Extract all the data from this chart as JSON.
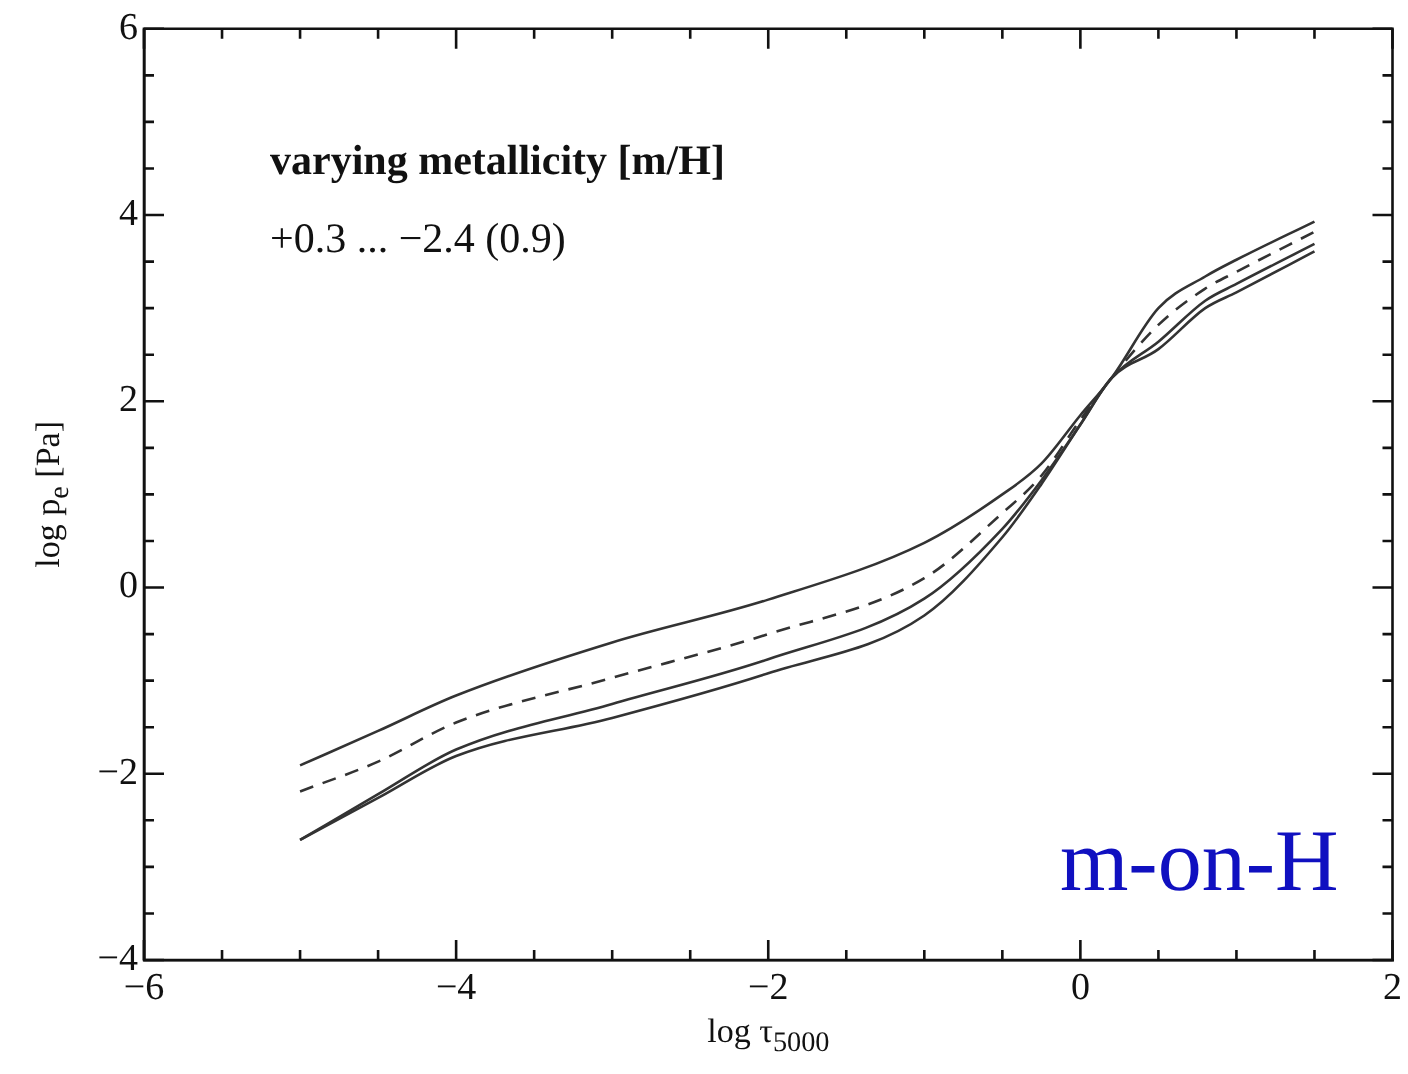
{
  "chart_data": {
    "type": "line",
    "xlabel": "log τ$_{5000}$",
    "ylabel": "log p$_{e}$ [Pa]",
    "annotations": [
      "varying metallicity [m/H]",
      "+0.3 ... −2.4 (0.9)",
      "m-on-H"
    ],
    "x": [
      -5,
      -4.5,
      -4,
      -3,
      -2,
      -1,
      -0.5,
      -0.25,
      0,
      0.2,
      0.5,
      0.8,
      1,
      1.5
    ],
    "series": [
      {
        "color": "#333333",
        "line_style": "solid",
        "values": [
          -1.91,
          -1.54,
          -1.16,
          -0.59,
          -0.13,
          0.48,
          1.0,
          1.33,
          1.85,
          2.25,
          3.0,
          3.34,
          3.52,
          3.93
        ]
      },
      {
        "color": "#333333",
        "line_style": "dashed",
        "values": [
          -2.19,
          -1.87,
          -1.45,
          -0.97,
          -0.5,
          0.1,
          0.8,
          1.2,
          1.8,
          2.25,
          2.82,
          3.21,
          3.39,
          3.82
        ]
      },
      {
        "color": "#333333",
        "line_style": "solid",
        "values": [
          -2.71,
          -2.22,
          -1.74,
          -1.25,
          -0.77,
          -0.12,
          0.63,
          1.15,
          1.75,
          2.25,
          2.64,
          3.08,
          3.26,
          3.69
        ]
      },
      {
        "color": "#333333",
        "line_style": "solid",
        "values": [
          -2.71,
          -2.26,
          -1.81,
          -1.4,
          -0.92,
          -0.3,
          0.54,
          1.11,
          1.75,
          2.25,
          2.56,
          3.0,
          3.17,
          3.61
        ]
      }
    ],
    "xlim": [
      -6,
      2
    ],
    "ylim": [
      -4,
      6
    ],
    "xticks": [
      -6,
      {
        "value": -5.5,
        "label": null
      },
      {
        "value": -5,
        "label": null
      },
      {
        "value": -4.5,
        "label": null
      },
      -4,
      {
        "value": -3.5,
        "label": null
      },
      {
        "value": -3,
        "label": null
      },
      {
        "value": -2.5,
        "label": null
      },
      -2,
      {
        "value": -1.5,
        "label": null
      },
      {
        "value": -1,
        "label": null
      },
      {
        "value": -0.5,
        "label": null
      },
      0,
      {
        "value": 0.5,
        "label": null
      },
      {
        "value": 1,
        "label": null
      },
      {
        "value": 1.5,
        "label": null
      },
      2
    ],
    "yticks": [
      -4,
      {
        "value": -3.5,
        "label": null
      },
      {
        "value": -3,
        "label": null
      },
      {
        "value": -2.5,
        "label": null
      },
      -2,
      {
        "value": -1.5,
        "label": null
      },
      {
        "value": -1,
        "label": null
      },
      {
        "value": -0.5,
        "label": null
      },
      0,
      {
        "value": 0.5,
        "label": null
      },
      {
        "value": 1,
        "label": null
      },
      {
        "value": 1.5,
        "label": null
      },
      2,
      {
        "value": 2.5,
        "label": null
      },
      {
        "value": 3,
        "label": null
      },
      {
        "value": 3.5,
        "label": null
      },
      4,
      {
        "value": 4.5,
        "label": null
      },
      {
        "value": 5,
        "label": null
      },
      {
        "value": 5.5,
        "label": null
      },
      6
    ],
    "grid": false,
    "legend": false,
    "marker": "none"
  }
}
